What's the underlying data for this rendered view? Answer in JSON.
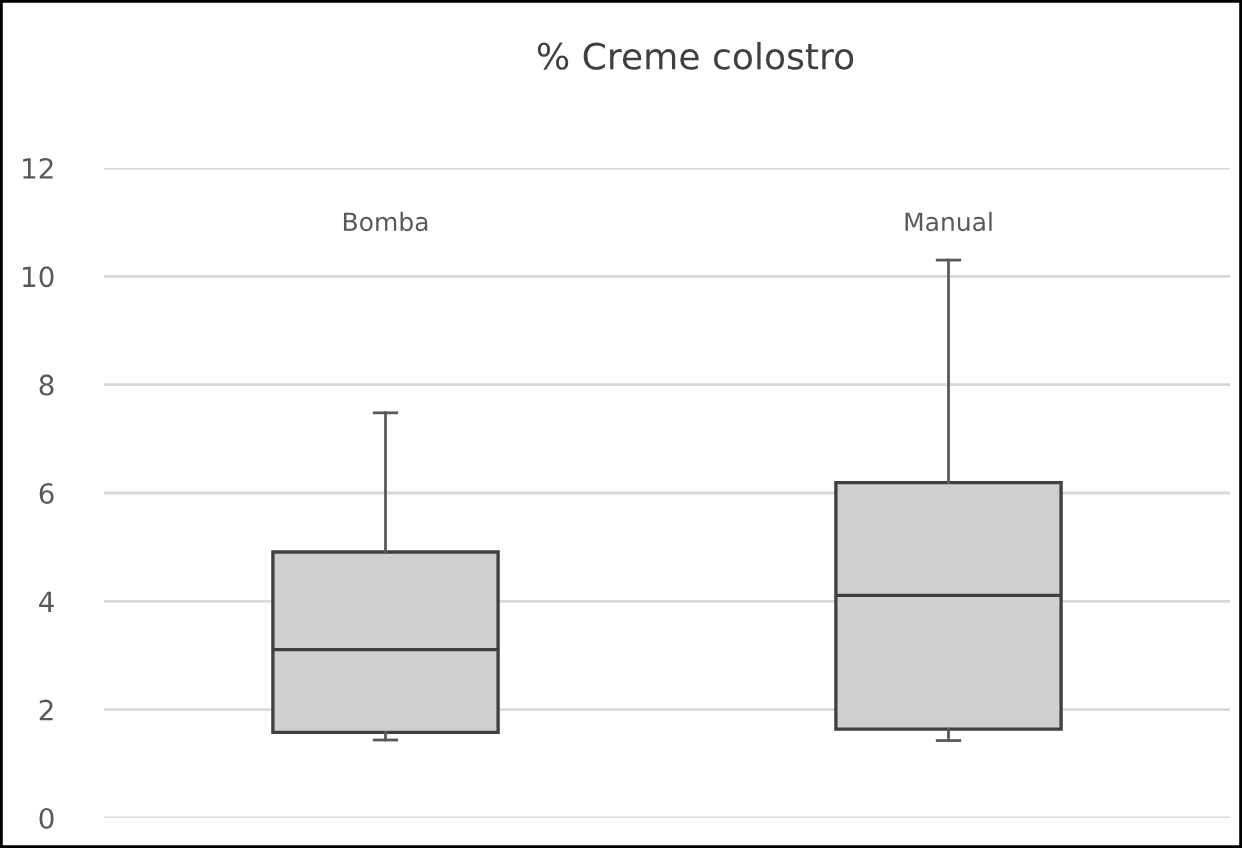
{
  "chart_data": {
    "type": "box",
    "title": "% Creme colostro",
    "categories": [
      "Bomba",
      "Manual"
    ],
    "boxes": [
      {
        "low": 1.44,
        "q1": 1.58,
        "median": 3.11,
        "q3": 4.91,
        "high": 7.48
      },
      {
        "low": 1.43,
        "q1": 1.64,
        "median": 4.11,
        "q3": 6.19,
        "high": 10.3
      }
    ],
    "color": "#d0cece",
    "ylim": [
      0,
      12
    ],
    "yticks": [
      0,
      2,
      4,
      6,
      8,
      10,
      12
    ],
    "grid": "y"
  }
}
